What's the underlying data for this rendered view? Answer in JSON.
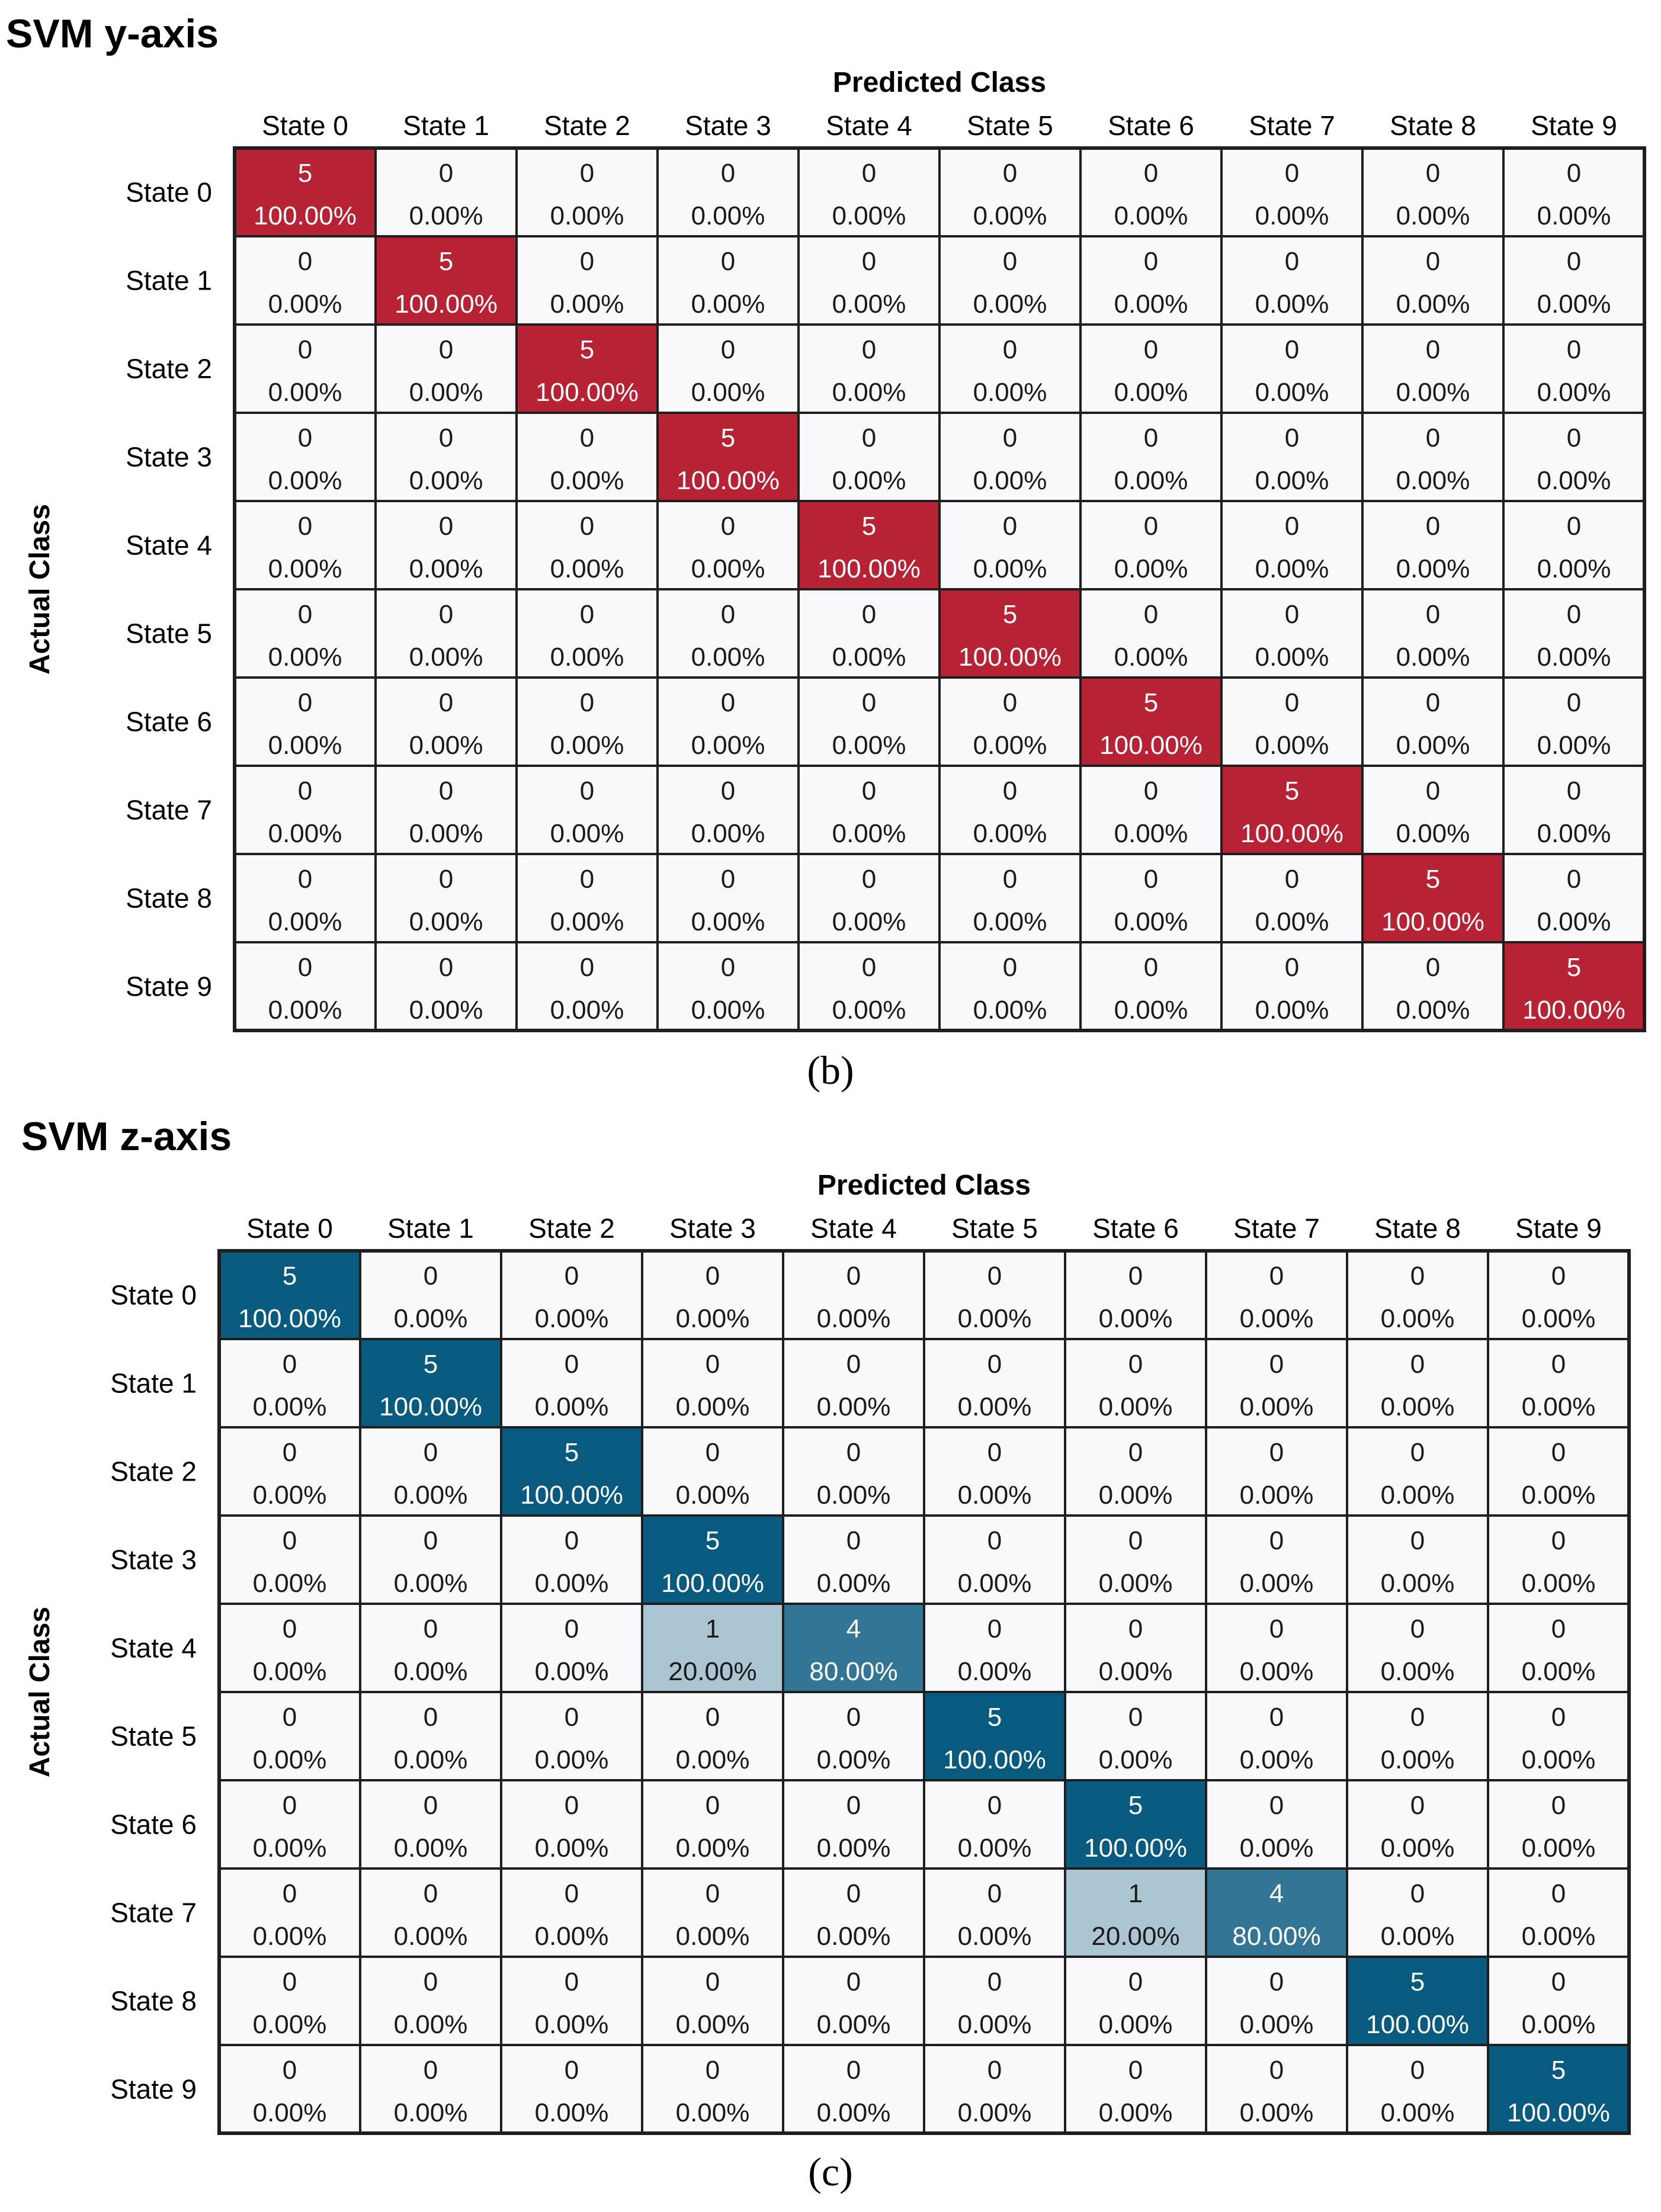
{
  "chart_data": [
    {
      "type": "heatmap",
      "title": "SVM y-axis",
      "xlabel": "Predicted Class",
      "ylabel": "Actual Class",
      "caption": "(b)",
      "color_high": "#b72235",
      "color_low": "#f9f8fb",
      "grid_color": "#1f1f1f",
      "labels": [
        "State 0",
        "State 1",
        "State 2",
        "State 3",
        "State 4",
        "State 5",
        "State 6",
        "State 7",
        "State 8",
        "State 9"
      ],
      "matrix": [
        [
          5,
          0,
          0,
          0,
          0,
          0,
          0,
          0,
          0,
          0
        ],
        [
          0,
          5,
          0,
          0,
          0,
          0,
          0,
          0,
          0,
          0
        ],
        [
          0,
          0,
          5,
          0,
          0,
          0,
          0,
          0,
          0,
          0
        ],
        [
          0,
          0,
          0,
          5,
          0,
          0,
          0,
          0,
          0,
          0
        ],
        [
          0,
          0,
          0,
          0,
          5,
          0,
          0,
          0,
          0,
          0
        ],
        [
          0,
          0,
          0,
          0,
          0,
          5,
          0,
          0,
          0,
          0
        ],
        [
          0,
          0,
          0,
          0,
          0,
          0,
          5,
          0,
          0,
          0
        ],
        [
          0,
          0,
          0,
          0,
          0,
          0,
          0,
          5,
          0,
          0
        ],
        [
          0,
          0,
          0,
          0,
          0,
          0,
          0,
          0,
          5,
          0
        ],
        [
          0,
          0,
          0,
          0,
          0,
          0,
          0,
          0,
          0,
          5
        ]
      ],
      "percent": [
        [
          "100.00%",
          "0.00%",
          "0.00%",
          "0.00%",
          "0.00%",
          "0.00%",
          "0.00%",
          "0.00%",
          "0.00%",
          "0.00%"
        ],
        [
          "0.00%",
          "100.00%",
          "0.00%",
          "0.00%",
          "0.00%",
          "0.00%",
          "0.00%",
          "0.00%",
          "0.00%",
          "0.00%"
        ],
        [
          "0.00%",
          "0.00%",
          "100.00%",
          "0.00%",
          "0.00%",
          "0.00%",
          "0.00%",
          "0.00%",
          "0.00%",
          "0.00%"
        ],
        [
          "0.00%",
          "0.00%",
          "0.00%",
          "100.00%",
          "0.00%",
          "0.00%",
          "0.00%",
          "0.00%",
          "0.00%",
          "0.00%"
        ],
        [
          "0.00%",
          "0.00%",
          "0.00%",
          "0.00%",
          "100.00%",
          "0.00%",
          "0.00%",
          "0.00%",
          "0.00%",
          "0.00%"
        ],
        [
          "0.00%",
          "0.00%",
          "0.00%",
          "0.00%",
          "0.00%",
          "100.00%",
          "0.00%",
          "0.00%",
          "0.00%",
          "0.00%"
        ],
        [
          "0.00%",
          "0.00%",
          "0.00%",
          "0.00%",
          "0.00%",
          "0.00%",
          "100.00%",
          "0.00%",
          "0.00%",
          "0.00%"
        ],
        [
          "0.00%",
          "0.00%",
          "0.00%",
          "0.00%",
          "0.00%",
          "0.00%",
          "0.00%",
          "100.00%",
          "0.00%",
          "0.00%"
        ],
        [
          "0.00%",
          "0.00%",
          "0.00%",
          "0.00%",
          "0.00%",
          "0.00%",
          "0.00%",
          "0.00%",
          "100.00%",
          "0.00%"
        ],
        [
          "0.00%",
          "0.00%",
          "0.00%",
          "0.00%",
          "0.00%",
          "0.00%",
          "0.00%",
          "0.00%",
          "0.00%",
          "100.00%"
        ]
      ]
    },
    {
      "type": "heatmap",
      "title": "SVM z-axis",
      "xlabel": "Predicted Class",
      "ylabel": "Actual Class",
      "caption": "(c)",
      "color_high": "#095a7f",
      "color_low": "#f9f8fb",
      "grid_color": "#1f1f1f",
      "labels": [
        "State 0",
        "State 1",
        "State 2",
        "State 3",
        "State 4",
        "State 5",
        "State 6",
        "State 7",
        "State 8",
        "State 9"
      ],
      "matrix": [
        [
          5,
          0,
          0,
          0,
          0,
          0,
          0,
          0,
          0,
          0
        ],
        [
          0,
          5,
          0,
          0,
          0,
          0,
          0,
          0,
          0,
          0
        ],
        [
          0,
          0,
          5,
          0,
          0,
          0,
          0,
          0,
          0,
          0
        ],
        [
          0,
          0,
          0,
          5,
          0,
          0,
          0,
          0,
          0,
          0
        ],
        [
          0,
          0,
          0,
          1,
          4,
          0,
          0,
          0,
          0,
          0
        ],
        [
          0,
          0,
          0,
          0,
          0,
          5,
          0,
          0,
          0,
          0
        ],
        [
          0,
          0,
          0,
          0,
          0,
          0,
          5,
          0,
          0,
          0
        ],
        [
          0,
          0,
          0,
          0,
          0,
          0,
          1,
          4,
          0,
          0
        ],
        [
          0,
          0,
          0,
          0,
          0,
          0,
          0,
          0,
          5,
          0
        ],
        [
          0,
          0,
          0,
          0,
          0,
          0,
          0,
          0,
          0,
          5
        ]
      ],
      "percent": [
        [
          "100.00%",
          "0.00%",
          "0.00%",
          "0.00%",
          "0.00%",
          "0.00%",
          "0.00%",
          "0.00%",
          "0.00%",
          "0.00%"
        ],
        [
          "0.00%",
          "100.00%",
          "0.00%",
          "0.00%",
          "0.00%",
          "0.00%",
          "0.00%",
          "0.00%",
          "0.00%",
          "0.00%"
        ],
        [
          "0.00%",
          "0.00%",
          "100.00%",
          "0.00%",
          "0.00%",
          "0.00%",
          "0.00%",
          "0.00%",
          "0.00%",
          "0.00%"
        ],
        [
          "0.00%",
          "0.00%",
          "0.00%",
          "100.00%",
          "0.00%",
          "0.00%",
          "0.00%",
          "0.00%",
          "0.00%",
          "0.00%"
        ],
        [
          "0.00%",
          "0.00%",
          "0.00%",
          "20.00%",
          "80.00%",
          "0.00%",
          "0.00%",
          "0.00%",
          "0.00%",
          "0.00%"
        ],
        [
          "0.00%",
          "0.00%",
          "0.00%",
          "0.00%",
          "0.00%",
          "100.00%",
          "0.00%",
          "0.00%",
          "0.00%",
          "0.00%"
        ],
        [
          "0.00%",
          "0.00%",
          "0.00%",
          "0.00%",
          "0.00%",
          "0.00%",
          "100.00%",
          "0.00%",
          "0.00%",
          "0.00%"
        ],
        [
          "0.00%",
          "0.00%",
          "0.00%",
          "0.00%",
          "0.00%",
          "0.00%",
          "20.00%",
          "80.00%",
          "0.00%",
          "0.00%"
        ],
        [
          "0.00%",
          "0.00%",
          "0.00%",
          "0.00%",
          "0.00%",
          "0.00%",
          "0.00%",
          "0.00%",
          "100.00%",
          "0.00%"
        ],
        [
          "0.00%",
          "0.00%",
          "0.00%",
          "0.00%",
          "0.00%",
          "0.00%",
          "0.00%",
          "0.00%",
          "0.00%",
          "100.00%"
        ]
      ]
    }
  ]
}
